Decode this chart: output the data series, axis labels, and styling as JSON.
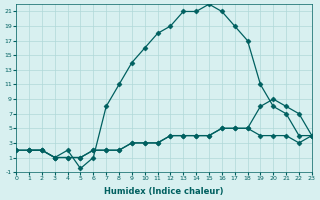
{
  "xlabel": "Humidex (Indice chaleur)",
  "bg_color": "#d8f0f0",
  "grid_color": "#b0d8d8",
  "line_color": "#006060",
  "marker": "D",
  "markersize": 2.5,
  "linewidth": 0.9,
  "series1_x": [
    1,
    2,
    3,
    4,
    5,
    6,
    7,
    8,
    9,
    10,
    11,
    12,
    13,
    14,
    15,
    16,
    17,
    18,
    19,
    20,
    21,
    22,
    23
  ],
  "series1_y": [
    2,
    2,
    1,
    2,
    -0.5,
    1,
    8,
    11,
    14,
    16,
    18,
    19,
    21,
    21,
    22,
    21,
    19,
    17,
    11,
    8,
    7,
    4,
    4
  ],
  "series2_x": [
    0,
    1,
    2,
    3,
    4,
    5,
    6,
    7,
    8,
    9,
    10,
    11,
    12,
    13,
    14,
    15,
    16,
    17,
    18,
    19,
    20,
    21,
    22,
    23
  ],
  "series2_y": [
    2,
    2,
    2,
    1,
    1,
    1,
    2,
    2,
    2,
    3,
    3,
    3,
    4,
    4,
    4,
    4,
    5,
    5,
    5,
    8,
    9,
    8,
    7,
    4
  ],
  "series3_x": [
    0,
    1,
    2,
    3,
    4,
    5,
    6,
    7,
    8,
    9,
    10,
    11,
    12,
    13,
    14,
    15,
    16,
    17,
    18,
    19,
    20,
    21,
    22,
    23
  ],
  "series3_y": [
    2,
    2,
    2,
    1,
    1,
    1,
    2,
    2,
    2,
    3,
    3,
    3,
    4,
    4,
    4,
    4,
    5,
    5,
    5,
    4,
    4,
    4,
    3,
    4
  ],
  "xlim": [
    0,
    23
  ],
  "ylim": [
    -1,
    22
  ],
  "xticks": [
    0,
    1,
    2,
    3,
    4,
    5,
    6,
    7,
    8,
    9,
    10,
    11,
    12,
    13,
    14,
    15,
    16,
    17,
    18,
    19,
    20,
    21,
    22,
    23
  ],
  "yticks": [
    -1,
    1,
    3,
    5,
    7,
    9,
    11,
    13,
    15,
    17,
    19,
    21
  ],
  "ytick_labels": [
    "-1",
    "1",
    "3",
    "5",
    "7",
    "9",
    "11",
    "13",
    "15",
    "17",
    "19",
    "21"
  ]
}
